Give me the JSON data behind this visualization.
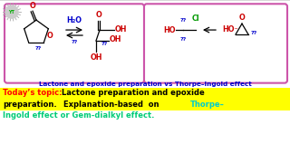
{
  "bg_color": "#d8d8d8",
  "white_bg": "#ffffff",
  "box1_color": "#cc55aa",
  "box2_color": "#cc55aa",
  "title_text": "Lactone and epoxide preparation vs Thorpe–Ingold effect",
  "title_color": "#0000cc",
  "line1_prefix": "Today’s topic: ",
  "line1_prefix_color": "#ff0000",
  "line1_highlight": "Lactone preparation and epoxide",
  "line2_part1": "preparation.",
  "line2_mid": "Explanation-based  on",
  "line2_thorpe": "Thorpe–",
  "line2_thorpe_color": "#00cccc",
  "line3": "Ingold effect or Gem-dialkyl effect.",
  "line3_color": "#00cc77",
  "h2o_color": "#0000cc",
  "qq_color": "#0000cc",
  "o_red": "#cc0000",
  "oh_red": "#cc0000",
  "ho_red": "#cc0000",
  "cl_green": "#009900",
  "ho_minus_red": "#cc0000",
  "title_fontsize": 5.2,
  "body_fontsize": 6.0,
  "chem_fontsize": 5.8
}
